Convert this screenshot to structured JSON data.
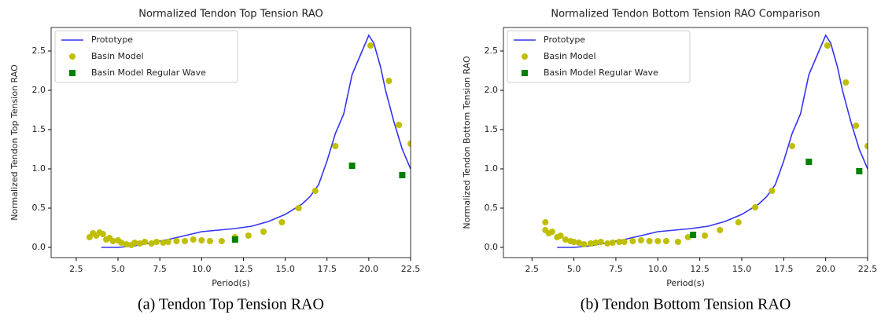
{
  "chart_data": [
    {
      "type": "line",
      "title": "Normalized Tendon Top Tension RAO",
      "xlabel": "Period(s)",
      "ylabel": "Normalized Tendon Top Tension RAO",
      "caption": "(a) Tendon Top Tension RAO",
      "xlim": [
        1.0,
        22.5
      ],
      "ylim": [
        -0.13,
        2.8
      ],
      "xticks": [
        2.5,
        {
          "value": 5.0,
          "label": "5.0"
        },
        7.5,
        {
          "value": 10.0,
          "label": "10.0"
        },
        12.5,
        {
          "value": 15.0,
          "label": "15.0"
        },
        17.5,
        {
          "value": 20.0,
          "label": "20.0"
        },
        22.5
      ],
      "yticks": [
        {
          "value": 0.0,
          "label": "0.0"
        },
        0.5,
        {
          "value": 1.0,
          "label": "1.0"
        },
        1.5,
        {
          "value": 2.0,
          "label": "2.0"
        },
        2.5
      ],
      "legend": "upper left",
      "series": [
        {
          "name": "Prototype",
          "color": "#3535f0",
          "marker": "none",
          "x": [
            4,
            5,
            6,
            7,
            8,
            9,
            10,
            11,
            12,
            13,
            14,
            15,
            16,
            16.5,
            17,
            17.5,
            18,
            18.5,
            19,
            19.5,
            20,
            20.3,
            20.7,
            21,
            21.5,
            22,
            22.5
          ],
          "values": [
            0.0,
            0.0,
            0.02,
            0.06,
            0.1,
            0.15,
            0.2,
            0.22,
            0.24,
            0.27,
            0.33,
            0.42,
            0.55,
            0.65,
            0.8,
            1.1,
            1.45,
            1.7,
            2.2,
            2.45,
            2.7,
            2.6,
            2.3,
            2.0,
            1.6,
            1.25,
            1.0
          ]
        },
        {
          "name": "Basin Model",
          "color": "#bfbf00",
          "marker": "circle",
          "x": [
            3.3,
            3.5,
            3.7,
            3.9,
            4.1,
            4.3,
            4.5,
            4.7,
            5.0,
            5.2,
            5.5,
            5.8,
            6.0,
            6.3,
            6.6,
            7.0,
            7.3,
            7.7,
            8.0,
            8.5,
            9.0,
            9.5,
            10.0,
            10.5,
            11.2,
            12.0,
            12.8,
            13.7,
            14.8,
            15.8,
            16.8,
            18.0,
            20.1,
            21.2,
            21.8,
            22.5
          ],
          "values": [
            0.13,
            0.18,
            0.15,
            0.19,
            0.17,
            0.1,
            0.12,
            0.08,
            0.09,
            0.06,
            0.04,
            0.03,
            0.06,
            0.05,
            0.07,
            0.05,
            0.07,
            0.06,
            0.07,
            0.08,
            0.08,
            0.1,
            0.09,
            0.08,
            0.08,
            0.13,
            0.15,
            0.2,
            0.32,
            0.5,
            0.72,
            1.29,
            2.57,
            2.12,
            1.56,
            1.32
          ]
        },
        {
          "name": "Basin Model Regular Wave",
          "color": "#008000",
          "marker": "square",
          "x": [
            12.0,
            19.0,
            22.0
          ],
          "values": [
            0.1,
            1.04,
            0.92
          ]
        }
      ]
    },
    {
      "type": "line",
      "title": "Normalized Tendon Bottom Tension RAO Comparison",
      "xlabel": "Period(s)",
      "ylabel": "Normalized Tendon Bottom Tension RAO",
      "caption": "(b) Tendon Bottom Tension RAO",
      "xlim": [
        0.8,
        22.5
      ],
      "ylim": [
        -0.13,
        2.8
      ],
      "xticks": [
        2.5,
        {
          "value": 5.0,
          "label": "5.0"
        },
        7.5,
        {
          "value": 10.0,
          "label": "10.0"
        },
        12.5,
        {
          "value": 15.0,
          "label": "15.0"
        },
        17.5,
        {
          "value": 20.0,
          "label": "20.0"
        },
        22.5
      ],
      "yticks": [
        {
          "value": 0.0,
          "label": "0.0"
        },
        0.5,
        {
          "value": 1.0,
          "label": "1.0"
        },
        1.5,
        {
          "value": 2.0,
          "label": "2.0"
        },
        2.5
      ],
      "legend": "upper left",
      "series": [
        {
          "name": "Prototype",
          "color": "#3535f0",
          "marker": "none",
          "x": [
            4,
            5,
            6,
            7,
            8,
            9,
            10,
            11,
            12,
            13,
            14,
            15,
            16,
            16.5,
            17,
            17.5,
            18,
            18.5,
            19,
            19.5,
            20,
            20.3,
            20.7,
            21,
            21.5,
            22,
            22.5
          ],
          "values": [
            0.0,
            0.0,
            0.02,
            0.06,
            0.1,
            0.15,
            0.2,
            0.22,
            0.24,
            0.27,
            0.33,
            0.42,
            0.55,
            0.65,
            0.8,
            1.1,
            1.45,
            1.7,
            2.2,
            2.45,
            2.7,
            2.6,
            2.3,
            2.0,
            1.6,
            1.25,
            1.0
          ]
        },
        {
          "name": "Basin Model",
          "color": "#bfbf00",
          "marker": "circle",
          "x": [
            3.3,
            3.3,
            3.5,
            3.7,
            4.0,
            4.2,
            4.5,
            4.8,
            5.0,
            5.3,
            5.6,
            6.0,
            6.3,
            6.6,
            7.0,
            7.3,
            7.7,
            8.0,
            8.5,
            9.0,
            9.5,
            10.0,
            10.5,
            11.2,
            11.8,
            12.8,
            13.7,
            14.8,
            15.8,
            16.8,
            18.0,
            20.1,
            21.2,
            21.8,
            22.5
          ],
          "values": [
            0.32,
            0.22,
            0.18,
            0.2,
            0.13,
            0.15,
            0.1,
            0.08,
            0.07,
            0.06,
            0.04,
            0.05,
            0.06,
            0.07,
            0.05,
            0.06,
            0.07,
            0.07,
            0.08,
            0.09,
            0.08,
            0.08,
            0.08,
            0.07,
            0.13,
            0.15,
            0.22,
            0.32,
            0.51,
            0.72,
            1.29,
            2.57,
            2.1,
            1.55,
            1.29
          ]
        },
        {
          "name": "Basin Model Regular Wave",
          "color": "#008000",
          "marker": "square",
          "x": [
            12.1,
            19.0,
            22.0
          ],
          "values": [
            0.16,
            1.09,
            0.97
          ]
        }
      ]
    }
  ]
}
